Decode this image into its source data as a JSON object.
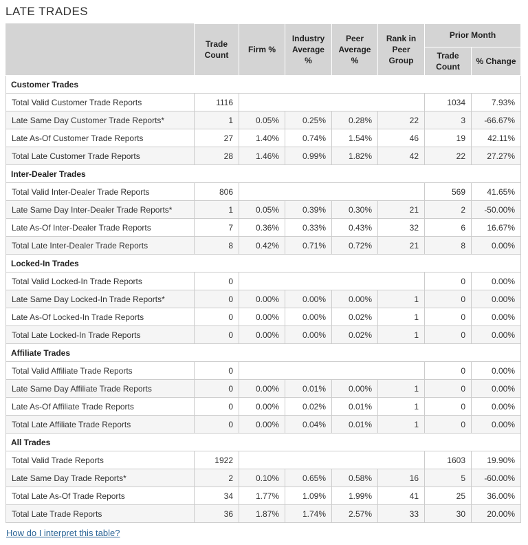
{
  "page": {
    "title": "LATE TRADES",
    "footer_link": "How do I interpret this table?"
  },
  "colors": {
    "header_bg": "#d4d4d4",
    "border": "#cccccc",
    "alt_row_bg": "#f5f5f5",
    "link": "#2a6496",
    "text": "#333333"
  },
  "table": {
    "columns": {
      "trade_count": "Trade Count",
      "firm_pct": "Firm %",
      "industry_avg": "Industry Average %",
      "peer_avg": "Peer Average %",
      "rank": "Rank in Peer Group",
      "prior_month": "Prior Month",
      "prior_trade_count": "Trade Count",
      "prior_pct_change": "% Change"
    },
    "sections": [
      {
        "name": "Customer Trades",
        "rows": [
          {
            "label": "Total Valid Customer Trade Reports",
            "merged": true,
            "trade_count": "1116",
            "prior_trade_count": "1034",
            "pct_change": "7.93%"
          },
          {
            "label": "Late Same Day Customer Trade Reports*",
            "trade_count": "1",
            "firm_pct": "0.05%",
            "industry_avg": "0.25%",
            "peer_avg": "0.28%",
            "rank": "22",
            "prior_trade_count": "3",
            "pct_change": "-66.67%"
          },
          {
            "label": "Late As-Of Customer Trade Reports",
            "trade_count": "27",
            "firm_pct": "1.40%",
            "industry_avg": "0.74%",
            "peer_avg": "1.54%",
            "rank": "46",
            "prior_trade_count": "19",
            "pct_change": "42.11%"
          },
          {
            "label": "Total Late Customer Trade Reports",
            "trade_count": "28",
            "firm_pct": "1.46%",
            "industry_avg": "0.99%",
            "peer_avg": "1.82%",
            "rank": "42",
            "prior_trade_count": "22",
            "pct_change": "27.27%"
          }
        ]
      },
      {
        "name": "Inter-Dealer Trades",
        "rows": [
          {
            "label": "Total Valid Inter-Dealer Trade Reports",
            "merged": true,
            "trade_count": "806",
            "prior_trade_count": "569",
            "pct_change": "41.65%"
          },
          {
            "label": "Late Same Day Inter-Dealer Trade Reports*",
            "trade_count": "1",
            "firm_pct": "0.05%",
            "industry_avg": "0.39%",
            "peer_avg": "0.30%",
            "rank": "21",
            "prior_trade_count": "2",
            "pct_change": "-50.00%"
          },
          {
            "label": "Late As-Of Inter-Dealer Trade Reports",
            "trade_count": "7",
            "firm_pct": "0.36%",
            "industry_avg": "0.33%",
            "peer_avg": "0.43%",
            "rank": "32",
            "prior_trade_count": "6",
            "pct_change": "16.67%"
          },
          {
            "label": "Total Late Inter-Dealer Trade Reports",
            "trade_count": "8",
            "firm_pct": "0.42%",
            "industry_avg": "0.71%",
            "peer_avg": "0.72%",
            "rank": "21",
            "prior_trade_count": "8",
            "pct_change": "0.00%"
          }
        ]
      },
      {
        "name": "Locked-In Trades",
        "rows": [
          {
            "label": "Total Valid Locked-In Trade Reports",
            "merged": true,
            "trade_count": "0",
            "prior_trade_count": "0",
            "pct_change": "0.00%"
          },
          {
            "label": "Late Same Day Locked-In Trade Reports*",
            "trade_count": "0",
            "firm_pct": "0.00%",
            "industry_avg": "0.00%",
            "peer_avg": "0.00%",
            "rank": "1",
            "prior_trade_count": "0",
            "pct_change": "0.00%"
          },
          {
            "label": "Late As-Of Locked-In Trade Reports",
            "trade_count": "0",
            "firm_pct": "0.00%",
            "industry_avg": "0.00%",
            "peer_avg": "0.02%",
            "rank": "1",
            "prior_trade_count": "0",
            "pct_change": "0.00%"
          },
          {
            "label": "Total Late Locked-In Trade Reports",
            "trade_count": "0",
            "firm_pct": "0.00%",
            "industry_avg": "0.00%",
            "peer_avg": "0.02%",
            "rank": "1",
            "prior_trade_count": "0",
            "pct_change": "0.00%"
          }
        ]
      },
      {
        "name": "Affiliate Trades",
        "rows": [
          {
            "label": "Total Valid Affiliate Trade Reports",
            "merged": true,
            "trade_count": "0",
            "prior_trade_count": "0",
            "pct_change": "0.00%"
          },
          {
            "label": "Late Same Day Affiliate Trade Reports",
            "trade_count": "0",
            "firm_pct": "0.00%",
            "industry_avg": "0.01%",
            "peer_avg": "0.00%",
            "rank": "1",
            "prior_trade_count": "0",
            "pct_change": "0.00%"
          },
          {
            "label": "Late As-Of Affiliate Trade Reports",
            "trade_count": "0",
            "firm_pct": "0.00%",
            "industry_avg": "0.02%",
            "peer_avg": "0.01%",
            "rank": "1",
            "prior_trade_count": "0",
            "pct_change": "0.00%"
          },
          {
            "label": "Total Late Affiliate Trade Reports",
            "trade_count": "0",
            "firm_pct": "0.00%",
            "industry_avg": "0.04%",
            "peer_avg": "0.01%",
            "rank": "1",
            "prior_trade_count": "0",
            "pct_change": "0.00%"
          }
        ]
      },
      {
        "name": "All Trades",
        "rows": [
          {
            "label": "Total Valid Trade Reports",
            "merged": true,
            "trade_count": "1922",
            "prior_trade_count": "1603",
            "pct_change": "19.90%"
          },
          {
            "label": "Late Same Day Trade Reports*",
            "trade_count": "2",
            "firm_pct": "0.10%",
            "industry_avg": "0.65%",
            "peer_avg": "0.58%",
            "rank": "16",
            "prior_trade_count": "5",
            "pct_change": "-60.00%"
          },
          {
            "label": "Total Late As-Of Trade Reports",
            "trade_count": "34",
            "firm_pct": "1.77%",
            "industry_avg": "1.09%",
            "peer_avg": "1.99%",
            "rank": "41",
            "prior_trade_count": "25",
            "pct_change": "36.00%"
          },
          {
            "label": "Total Late Trade Reports",
            "trade_count": "36",
            "firm_pct": "1.87%",
            "industry_avg": "1.74%",
            "peer_avg": "2.57%",
            "rank": "33",
            "prior_trade_count": "30",
            "pct_change": "20.00%"
          }
        ]
      }
    ]
  }
}
